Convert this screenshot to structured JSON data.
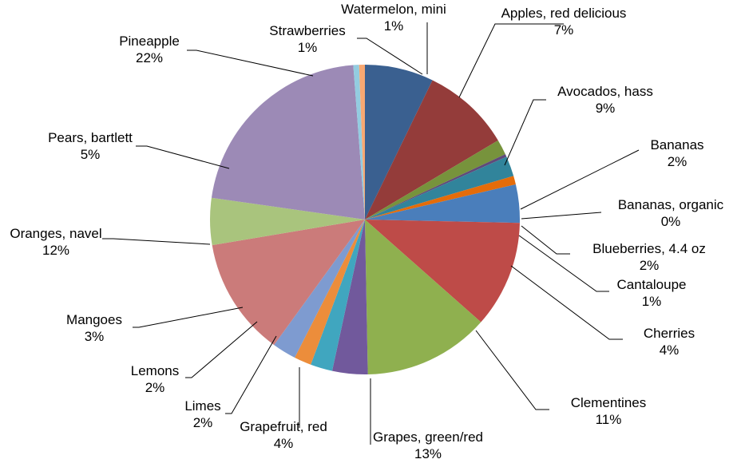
{
  "chart_data": {
    "type": "pie",
    "start_angle_deg": 0,
    "direction": "clockwise",
    "slices": [
      {
        "label": "Apples, red delicious",
        "pct_label": "7%",
        "value": 7.2,
        "color": "#3a6090"
      },
      {
        "label": "Avocados, hass",
        "pct_label": "9%",
        "value": 9.3,
        "color": "#943c3a"
      },
      {
        "label": "Bananas",
        "pct_label": "2%",
        "value": 1.6,
        "color": "#77933c"
      },
      {
        "label": "Bananas, organic",
        "pct_label": "0%",
        "value": 0.3,
        "color": "#5f4a7a"
      },
      {
        "label": "Blueberries, 4.4 oz",
        "pct_label": "2%",
        "value": 2.1,
        "color": "#31849b"
      },
      {
        "label": "Cantaloupe",
        "pct_label": "1%",
        "value": 0.9,
        "color": "#e46c0a"
      },
      {
        "label": "Cherries",
        "pct_label": "4%",
        "value": 4.0,
        "color": "#4a7ebb"
      },
      {
        "label": "Clementines",
        "pct_label": "11%",
        "value": 11.2,
        "color": "#be4b48"
      },
      {
        "label": "Grapes, green/red",
        "pct_label": "13%",
        "value": 13.2,
        "color": "#8fb04f"
      },
      {
        "label": "Grapefruit, red",
        "pct_label": "4%",
        "value": 3.7,
        "color": "#71599c"
      },
      {
        "label": "Limes",
        "pct_label": "2%",
        "value": 2.3,
        "color": "#40a6bf"
      },
      {
        "label": "Lemons",
        "pct_label": "2%",
        "value": 1.8,
        "color": "#ec8d3b"
      },
      {
        "label": "Mangoes",
        "pct_label": "3%",
        "value": 2.5,
        "color": "#7e9bd0"
      },
      {
        "label": "Oranges, navel",
        "pct_label": "12%",
        "value": 12.4,
        "color": "#cb7b7a"
      },
      {
        "label": "Pears, bartlett",
        "pct_label": "5%",
        "value": 4.9,
        "color": "#a9c47d"
      },
      {
        "label": "Pineapple",
        "pct_label": "22%",
        "value": 21.6,
        "color": "#9c8ab6"
      },
      {
        "label": "Strawberries",
        "pct_label": "1%",
        "value": 0.6,
        "color": "#93cce0"
      },
      {
        "label": "Watermelon, mini",
        "pct_label": "1%",
        "value": 0.6,
        "color": "#f8a872"
      }
    ],
    "title": "",
    "legend": "none"
  }
}
